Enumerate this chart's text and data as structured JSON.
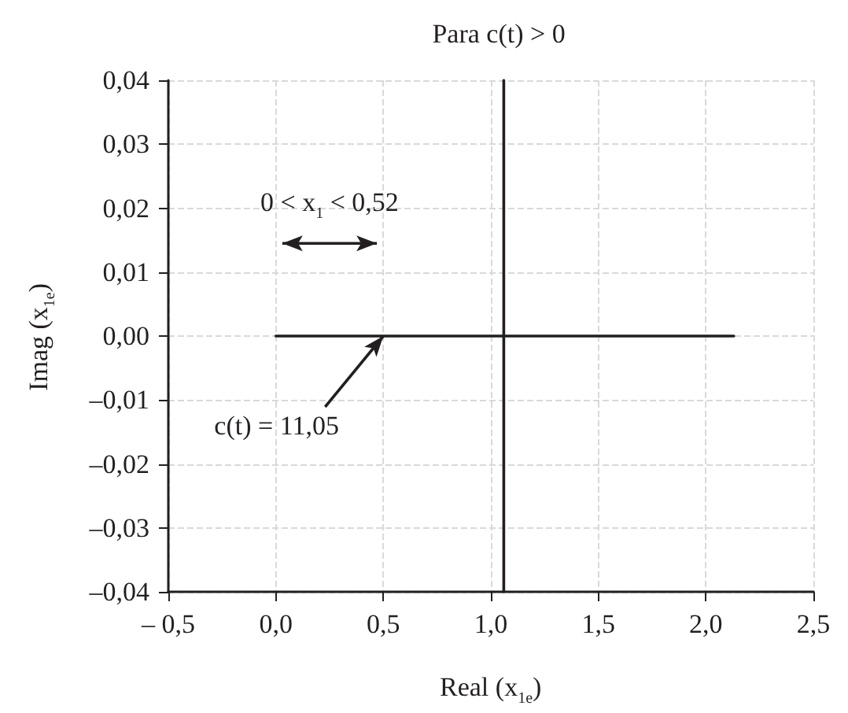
{
  "chart_data": {
    "type": "line",
    "title": "Para c(t) > 0",
    "xlabel": "Real (x$_{1e}$)",
    "ylabel": "Imag (x$_{1e}$)",
    "series": [
      {
        "color": "#231f20",
        "x": [
          0,
          2.13
        ],
        "values": [
          0,
          0
        ]
      },
      {
        "color": "#231f20",
        "x": [
          1.06,
          1.06
        ],
        "values": [
          -0.04,
          0.04
        ]
      }
    ],
    "annotations": [
      "0 < x$_{1}$ < 0,52",
      {
        "text": "c(t) = 11,05",
        "x": 0.5,
        "y": 0
      }
    ],
    "xlim": [
      -0.5,
      2.5
    ],
    "xticks": [
      {
        "value": -0.5,
        "label": "– 0,5"
      },
      {
        "value": 0,
        "label": "0,0"
      },
      {
        "value": 0.5,
        "label": "0,5"
      },
      {
        "value": 1,
        "label": "1,0"
      },
      {
        "value": 1.5,
        "label": "1,5"
      },
      {
        "value": 2,
        "label": "2,0"
      },
      {
        "value": 2.5,
        "label": "2,5"
      }
    ],
    "ylim": [
      -0.04,
      0.04
    ],
    "yticks": [
      {
        "value": -0.04,
        "label": "–0,04"
      },
      {
        "value": -0.03,
        "label": "–0,03"
      },
      {
        "value": -0.02,
        "label": "–0,02"
      },
      {
        "value": -0.01,
        "label": "–0,01"
      },
      {
        "value": 0,
        "label": "0,00"
      },
      {
        "value": 0.01,
        "label": "0,01"
      },
      {
        "value": 0.02,
        "label": "0,02"
      },
      {
        "value": 0.03,
        "label": "0,03"
      },
      {
        "value": 0.04,
        "label": "0,04"
      }
    ],
    "grid": true,
    "marker": "none",
    "line_style": "solid"
  }
}
